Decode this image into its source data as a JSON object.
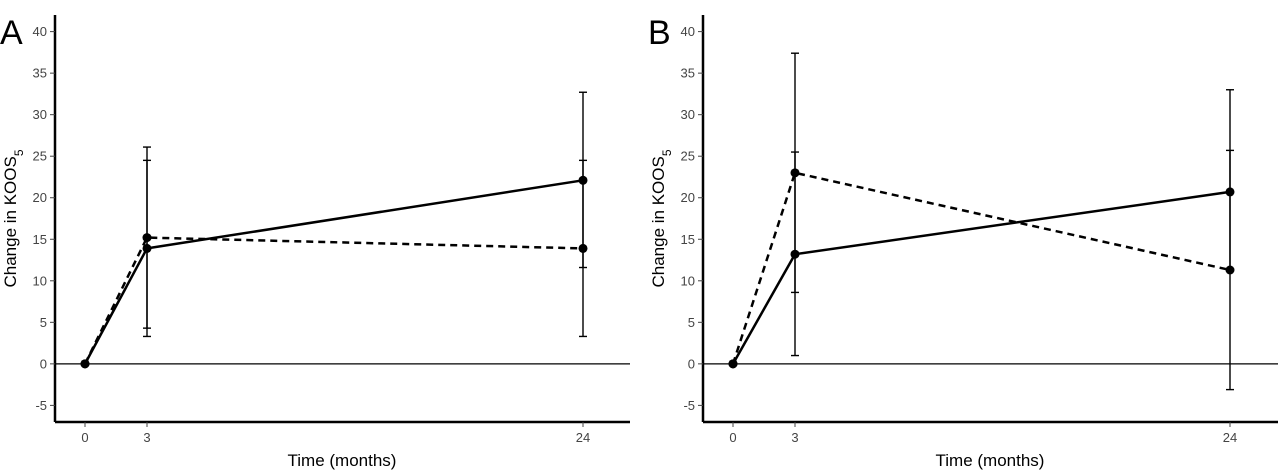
{
  "chart_data": [
    {
      "type": "line",
      "panel_label": "A",
      "xlabel": "Time (months)",
      "ylabel_main": "Change in KOOS",
      "ylabel_sub": "5",
      "x": [
        0,
        3,
        24
      ],
      "x_ticks": [
        "0",
        "3",
        "24"
      ],
      "ylim": [
        -7,
        42
      ],
      "y_ticks": [
        "-5",
        "0",
        "5",
        "10",
        "15",
        "20",
        "25",
        "30",
        "35",
        "40"
      ],
      "reference_line_y": 0,
      "legend": "none",
      "series": [
        {
          "style": "solid",
          "values": [
            0,
            13.9,
            22.1
          ],
          "error_low": [
            null,
            3.3,
            11.6
          ],
          "error_high": [
            null,
            24.5,
            32.7
          ]
        },
        {
          "style": "dashed",
          "values": [
            0,
            15.2,
            13.9
          ],
          "error_low": [
            null,
            4.3,
            3.3
          ],
          "error_high": [
            null,
            26.1,
            24.5
          ]
        }
      ]
    },
    {
      "type": "line",
      "panel_label": "B",
      "xlabel": "Time (months)",
      "ylabel_main": "Change in KOOS",
      "ylabel_sub": "5",
      "x": [
        0,
        3,
        24
      ],
      "x_ticks": [
        "0",
        "3",
        "24"
      ],
      "ylim": [
        -7,
        42
      ],
      "y_ticks": [
        "-5",
        "0",
        "5",
        "10",
        "15",
        "20",
        "25",
        "30",
        "35",
        "40"
      ],
      "reference_line_y": 0,
      "legend": "none",
      "series": [
        {
          "style": "solid",
          "values": [
            0,
            13.2,
            20.7
          ],
          "error_low": [
            null,
            1.0,
            11.3
          ],
          "error_high": [
            null,
            25.5,
            33.0
          ]
        },
        {
          "style": "dashed",
          "values": [
            0,
            23.0,
            11.3
          ],
          "error_low": [
            null,
            8.6,
            -3.1
          ],
          "error_high": [
            null,
            37.4,
            25.7
          ]
        }
      ]
    }
  ]
}
